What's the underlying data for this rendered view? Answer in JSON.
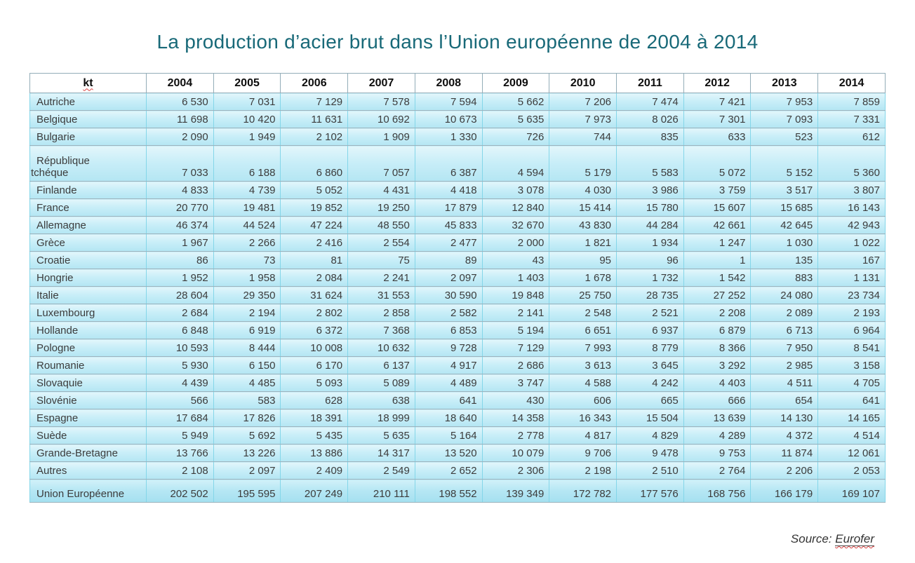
{
  "title": "La production d’acier brut dans l’Union européenne de 2004 à 2014",
  "source": {
    "label": "Source:",
    "reference": "Eurofer"
  },
  "chart_data": {
    "type": "table",
    "title": "La production d’acier brut dans l’Union européenne de 2004 à 2014",
    "unit": "kt",
    "categories": [
      "2004",
      "2005",
      "2006",
      "2007",
      "2008",
      "2009",
      "2010",
      "2011",
      "2012",
      "2013",
      "2014"
    ],
    "series": [
      {
        "name": "Autriche",
        "values": [
          6530,
          7031,
          7129,
          7578,
          7594,
          5662,
          7206,
          7474,
          7421,
          7953,
          7859
        ]
      },
      {
        "name": "Belgique",
        "values": [
          11698,
          10420,
          11631,
          10692,
          10673,
          5635,
          7973,
          8026,
          7301,
          7093,
          7331
        ]
      },
      {
        "name": "Bulgarie",
        "values": [
          2090,
          1949,
          2102,
          1909,
          1330,
          726,
          744,
          835,
          633,
          523,
          612
        ]
      },
      {
        "name": "République tchéque",
        "values": [
          7033,
          6188,
          6860,
          7057,
          6387,
          4594,
          5179,
          5583,
          5072,
          5152,
          5360
        ],
        "wrap": true
      },
      {
        "name": "Finlande",
        "values": [
          4833,
          4739,
          5052,
          4431,
          4418,
          3078,
          4030,
          3986,
          3759,
          3517,
          3807
        ]
      },
      {
        "name": "France",
        "values": [
          20770,
          19481,
          19852,
          19250,
          17879,
          12840,
          15414,
          15780,
          15607,
          15685,
          16143
        ]
      },
      {
        "name": "Allemagne",
        "values": [
          46374,
          44524,
          47224,
          48550,
          45833,
          32670,
          43830,
          44284,
          42661,
          42645,
          42943
        ]
      },
      {
        "name": "Grèce",
        "values": [
          1967,
          2266,
          2416,
          2554,
          2477,
          2000,
          1821,
          1934,
          1247,
          1030,
          1022
        ]
      },
      {
        "name": "Croatie",
        "values": [
          86,
          73,
          81,
          75,
          89,
          43,
          95,
          96,
          1,
          135,
          167
        ]
      },
      {
        "name": "Hongrie",
        "values": [
          1952,
          1958,
          2084,
          2241,
          2097,
          1403,
          1678,
          1732,
          1542,
          883,
          1131
        ]
      },
      {
        "name": "Italie",
        "values": [
          28604,
          29350,
          31624,
          31553,
          30590,
          19848,
          25750,
          28735,
          27252,
          24080,
          23734
        ]
      },
      {
        "name": "Luxembourg",
        "values": [
          2684,
          2194,
          2802,
          2858,
          2582,
          2141,
          2548,
          2521,
          2208,
          2089,
          2193
        ]
      },
      {
        "name": "Hollande",
        "values": [
          6848,
          6919,
          6372,
          7368,
          6853,
          5194,
          6651,
          6937,
          6879,
          6713,
          6964
        ]
      },
      {
        "name": "Pologne",
        "values": [
          10593,
          8444,
          10008,
          10632,
          9728,
          7129,
          7993,
          8779,
          8366,
          7950,
          8541
        ]
      },
      {
        "name": "Roumanie",
        "values": [
          5930,
          6150,
          6170,
          6137,
          4917,
          2686,
          3613,
          3645,
          3292,
          2985,
          3158
        ]
      },
      {
        "name": "Slovaquie",
        "values": [
          4439,
          4485,
          5093,
          5089,
          4489,
          3747,
          4588,
          4242,
          4403,
          4511,
          4705
        ]
      },
      {
        "name": "Slovénie",
        "values": [
          566,
          583,
          628,
          638,
          641,
          430,
          606,
          665,
          666,
          654,
          641
        ]
      },
      {
        "name": "Espagne",
        "values": [
          17684,
          17826,
          18391,
          18999,
          18640,
          14358,
          16343,
          15504,
          13639,
          14130,
          14165
        ]
      },
      {
        "name": "Suède",
        "values": [
          5949,
          5692,
          5435,
          5635,
          5164,
          2778,
          4817,
          4829,
          4289,
          4372,
          4514
        ]
      },
      {
        "name": "Grande-Bretagne",
        "values": [
          13766,
          13226,
          13886,
          14317,
          13520,
          10079,
          9706,
          9478,
          9753,
          11874,
          12061
        ]
      },
      {
        "name": "Autres",
        "values": [
          2108,
          2097,
          2409,
          2549,
          2652,
          2306,
          2198,
          2510,
          2764,
          2206,
          2053
        ]
      },
      {
        "name": "Union Européenne",
        "values": [
          202502,
          195595,
          207249,
          210111,
          198552,
          139349,
          172782,
          177576,
          168756,
          166179,
          169107
        ],
        "total": true
      }
    ]
  }
}
